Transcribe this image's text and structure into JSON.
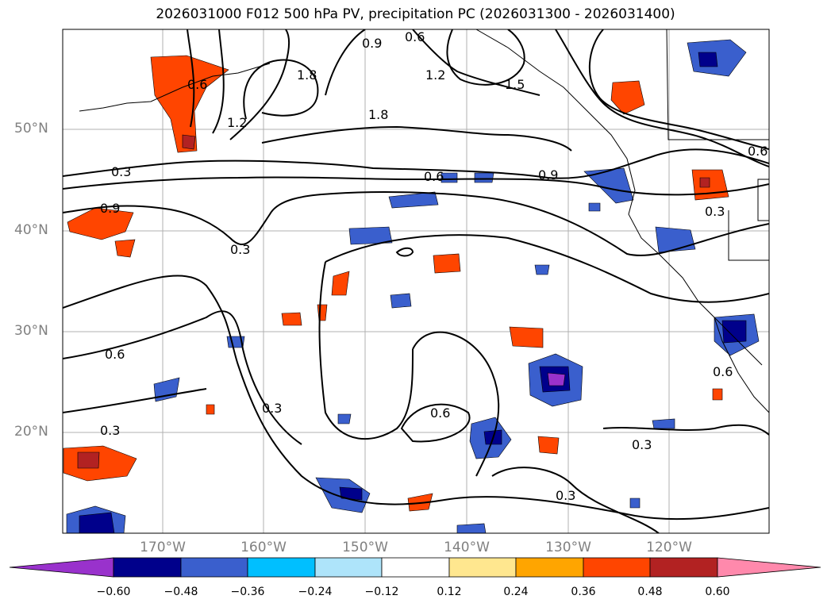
{
  "title": "2026031000 F012 500 hPa PV, precipitation PC (2026031300 - 2026031400)",
  "lat_labels": [
    "50°N",
    "40°N",
    "30°N",
    "20°N"
  ],
  "lon_labels": [
    "170°W",
    "160°W",
    "150°W",
    "140°W",
    "130°W",
    "120°W"
  ],
  "contour_labels": [
    "0.3",
    "0.6",
    "0.9",
    "1.2",
    "1.5",
    "1.8"
  ],
  "colorbar": {
    "ticks": [
      "−0.60",
      "−0.48",
      "−0.36",
      "−0.24",
      "−0.12",
      "0.12",
      "0.24",
      "0.36",
      "0.48",
      "0.60"
    ],
    "colors": [
      "#9932CC",
      "#00008B",
      "#3A5FCD",
      "#00BFFF",
      "#AEE4FA",
      "#FFFFFF",
      "#FFE78F",
      "#FFA500",
      "#FF4500",
      "#B22222",
      "#FF89AC"
    ]
  }
}
